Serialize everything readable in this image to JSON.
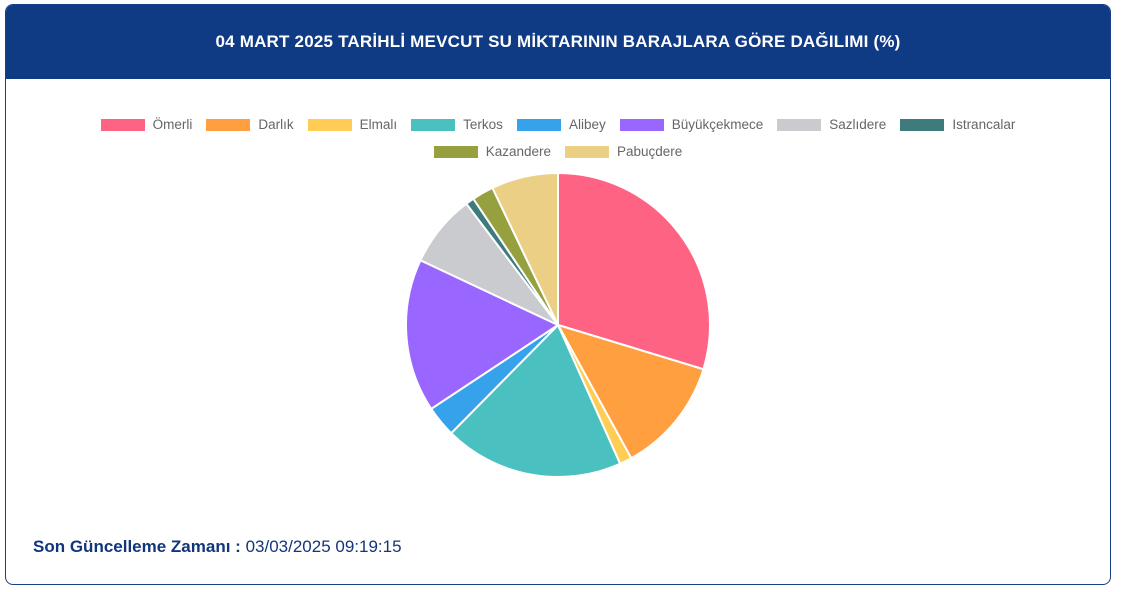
{
  "header": {
    "title": "04 MART 2025 TARİHLİ MEVCUT SU MİKTARININ BARAJLARA GÖRE DAĞILIMI (%)"
  },
  "chart_data": {
    "type": "pie",
    "title": "04 MART 2025 TARİHLİ MEVCUT SU MİKTARININ BARAJLARA GÖRE DAĞILIMI (%)",
    "legend_position": "top",
    "categories": [
      "Ömerli",
      "Darlık",
      "Elmalı",
      "Terkos",
      "Alibey",
      "Büyükçekmece",
      "Sazlıdere",
      "Istrancalar",
      "Kazandere",
      "Pabuçdere"
    ],
    "values": [
      29.7,
      12.3,
      1.3,
      19.1,
      3.3,
      16.3,
      7.7,
      0.9,
      2.3,
      7.1
    ],
    "colors": [
      "#ff6384",
      "#ff9f40",
      "#ffcd56",
      "#4bc0c0",
      "#36a2eb",
      "#9966ff",
      "#c9cbcf",
      "#3d7b7d",
      "#97a03f",
      "#ebcf84"
    ]
  },
  "footer": {
    "label": "Son Güncelleme Zamanı :",
    "value": "03/03/2025 09:19:15"
  }
}
